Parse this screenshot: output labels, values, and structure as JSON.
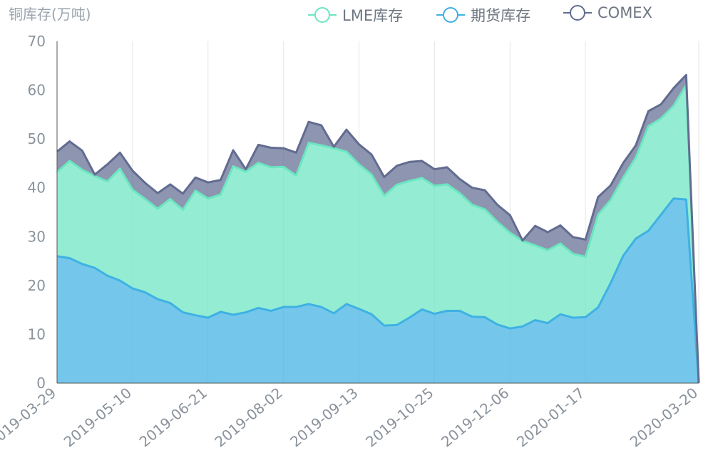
{
  "chart_data": {
    "type": "area",
    "title": "铜库存(万吨)",
    "x": [
      "2019-03-29",
      "2019-04-05",
      "2019-04-12",
      "2019-04-19",
      "2019-04-26",
      "2019-05-03",
      "2019-05-10",
      "2019-05-17",
      "2019-05-24",
      "2019-05-31",
      "2019-06-07",
      "2019-06-14",
      "2019-06-21",
      "2019-06-28",
      "2019-07-05",
      "2019-07-12",
      "2019-07-19",
      "2019-07-26",
      "2019-08-02",
      "2019-08-09",
      "2019-08-16",
      "2019-08-23",
      "2019-08-30",
      "2019-09-06",
      "2019-09-13",
      "2019-09-20",
      "2019-09-27",
      "2019-10-04",
      "2019-10-11",
      "2019-10-18",
      "2019-10-25",
      "2019-11-01",
      "2019-11-08",
      "2019-11-15",
      "2019-11-22",
      "2019-11-29",
      "2019-12-06",
      "2019-12-13",
      "2019-12-20",
      "2019-12-27",
      "2020-01-03",
      "2020-01-10",
      "2020-01-17",
      "2020-01-24",
      "2020-01-31",
      "2020-02-07",
      "2020-02-14",
      "2020-02-21",
      "2020-02-28",
      "2020-03-06",
      "2020-03-13",
      "2020-03-20"
    ],
    "x_tick_labels": [
      "2019-03-29",
      "2019-05-10",
      "2019-06-21",
      "2019-08-02",
      "2019-09-13",
      "2019-10-25",
      "2019-12-06",
      "2020-01-17",
      "2020-03-20"
    ],
    "x_tick_index": [
      0,
      6,
      12,
      18,
      24,
      30,
      36,
      42,
      51
    ],
    "stacked": true,
    "series": [
      {
        "name": "期货库存",
        "color": "#3fb1e3",
        "values": [
          26.0,
          25.6,
          24.4,
          23.6,
          22.0,
          21.0,
          19.4,
          18.6,
          17.2,
          16.4,
          14.5,
          13.9,
          13.4,
          14.6,
          14.0,
          14.5,
          15.4,
          14.8,
          15.6,
          15.6,
          16.2,
          15.6,
          14.3,
          16.2,
          15.2,
          14.1,
          11.8,
          11.9,
          13.4,
          15.1,
          14.2,
          14.8,
          14.8,
          13.6,
          13.5,
          12.0,
          11.2,
          11.6,
          12.9,
          12.3,
          14.1,
          13.4,
          13.5,
          15.5,
          20.5,
          26.1,
          29.6,
          31.2,
          34.5,
          37.8,
          37.6,
          0
        ]
      },
      {
        "name": "LME库存",
        "color": "#6be6c1",
        "values": [
          17.2,
          19.9,
          19.3,
          18.8,
          19.3,
          22.9,
          20.2,
          19.1,
          18.5,
          21.3,
          21.0,
          25.5,
          24.4,
          24.0,
          30.4,
          28.8,
          29.7,
          29.4,
          28.7,
          26.9,
          33.0,
          33.1,
          33.8,
          31.2,
          29.6,
          28.6,
          26.6,
          28.7,
          28.0,
          26.9,
          26.2,
          25.9,
          24.1,
          22.9,
          22.1,
          21.0,
          19.6,
          17.5,
          15.3,
          14.9,
          14.5,
          13.1,
          12.4,
          19.0,
          17.0,
          16.0,
          16.6,
          21.4,
          19.7,
          19.0,
          23.4,
          0
        ]
      },
      {
        "name": "COMEX",
        "color": "#626c91",
        "values": [
          4.2,
          4.0,
          3.9,
          0.3,
          3.5,
          3.3,
          3.9,
          3.3,
          3.2,
          3.0,
          3.3,
          2.7,
          3.3,
          3.0,
          3.3,
          0.5,
          3.7,
          4.0,
          3.8,
          4.7,
          4.3,
          4.1,
          0.3,
          4.5,
          4.1,
          4.1,
          3.8,
          3.9,
          3.9,
          3.5,
          3.4,
          3.5,
          2.9,
          3.5,
          3.9,
          3.5,
          3.6,
          0.1,
          4.0,
          3.7,
          3.7,
          3.4,
          3.5,
          3.6,
          3.0,
          3.0,
          2.5,
          3.1,
          2.9,
          3.6,
          2.1,
          0
        ]
      }
    ],
    "ylim": [
      0,
      70
    ],
    "yticks": [
      0,
      10,
      20,
      30,
      40,
      50,
      60,
      70
    ],
    "xlabel": "",
    "ylabel": "",
    "grid": true,
    "legend_position": "top-right"
  }
}
